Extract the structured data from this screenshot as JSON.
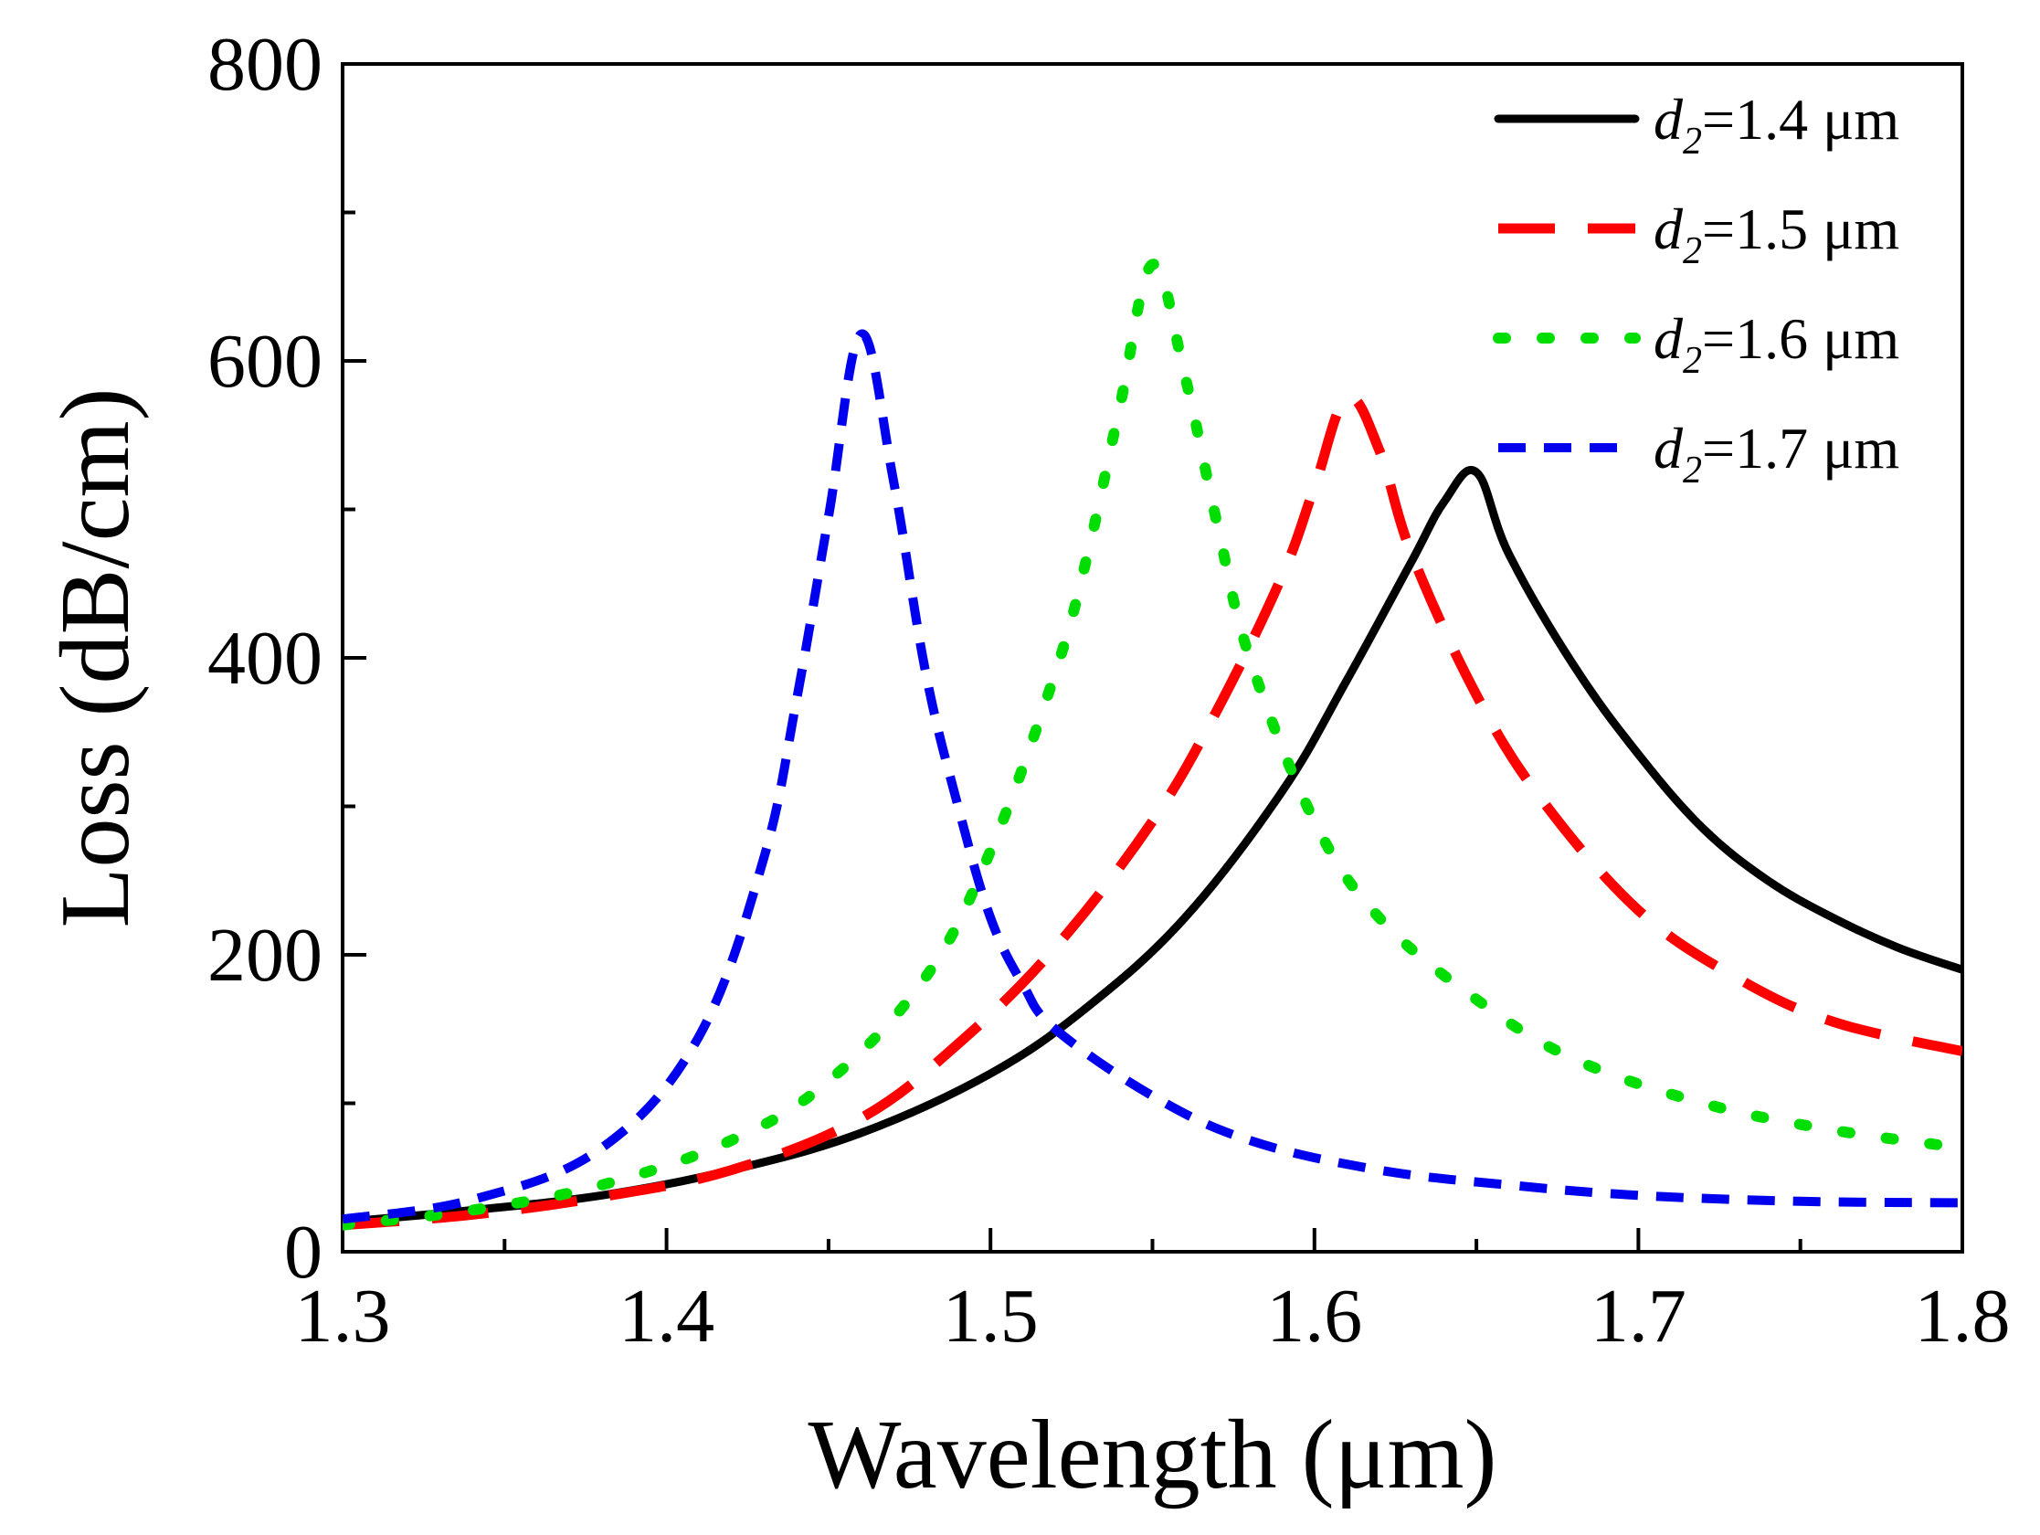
{
  "chart_data": {
    "type": "line",
    "title": "",
    "xlabel": "Wavelength (μm)",
    "ylabel": "Loss (dB/cm)",
    "xlim": [
      1.3,
      1.8
    ],
    "ylim": [
      0,
      800
    ],
    "x_ticks": [
      1.3,
      1.4,
      1.5,
      1.6,
      1.7,
      1.8
    ],
    "x_tick_labels": [
      "1.3",
      "1.4",
      "1.5",
      "1.6",
      "1.7",
      "1.8"
    ],
    "y_ticks": [
      0,
      200,
      400,
      600,
      800
    ],
    "y_tick_labels": [
      "0",
      "200",
      "400",
      "600",
      "800"
    ],
    "grid": false,
    "legend_position": "top-right",
    "series": [
      {
        "name": "d2=1.4 μm",
        "legend_var": "d",
        "legend_sub": "2",
        "legend_value": "=1.4 μm",
        "color": "#000000",
        "style": "solid",
        "x": [
          1.3,
          1.34,
          1.38,
          1.42,
          1.46,
          1.5,
          1.53,
          1.56,
          1.59,
          1.61,
          1.63,
          1.64,
          1.65,
          1.66,
          1.68,
          1.7,
          1.72,
          1.74,
          1.76,
          1.78,
          1.8
        ],
        "y": [
          20,
          28,
          38,
          55,
          80,
          120,
          165,
          225,
          310,
          385,
          465,
          505,
          525,
          470,
          395,
          335,
          285,
          250,
          225,
          205,
          190
        ]
      },
      {
        "name": "d2=1.5 μm",
        "legend_var": "d",
        "legend_sub": "2",
        "legend_value": "=1.5 μm",
        "color": "#ff0000",
        "style": "longdash",
        "x": [
          1.3,
          1.34,
          1.38,
          1.42,
          1.46,
          1.49,
          1.52,
          1.55,
          1.57,
          1.59,
          1.6,
          1.61,
          1.62,
          1.63,
          1.65,
          1.67,
          1.7,
          1.73,
          1.76,
          1.8
        ],
        "y": [
          18,
          25,
          37,
          55,
          90,
          140,
          205,
          290,
          365,
          455,
          515,
          575,
          540,
          470,
          375,
          305,
          230,
          185,
          155,
          135
        ]
      },
      {
        "name": "d2=1.6 μm",
        "legend_var": "d",
        "legend_sub": "2",
        "legend_value": "=1.6 μm",
        "color": "#00dd00",
        "style": "dotted",
        "x": [
          1.3,
          1.34,
          1.38,
          1.42,
          1.45,
          1.48,
          1.5,
          1.52,
          1.53,
          1.54,
          1.55,
          1.56,
          1.57,
          1.58,
          1.6,
          1.62,
          1.65,
          1.68,
          1.72,
          1.76,
          1.8
        ],
        "y": [
          18,
          28,
          45,
          75,
          115,
          185,
          270,
          390,
          470,
          570,
          665,
          590,
          490,
          400,
          290,
          225,
          170,
          130,
          100,
          82,
          70
        ]
      },
      {
        "name": "d2=1.7 μm",
        "legend_var": "d",
        "legend_sub": "2",
        "legend_value": "=1.7 μm",
        "color": "#0000ee",
        "style": "dashed",
        "x": [
          1.3,
          1.34,
          1.38,
          1.41,
          1.43,
          1.44,
          1.45,
          1.46,
          1.47,
          1.48,
          1.49,
          1.5,
          1.51,
          1.52,
          1.55,
          1.58,
          1.62,
          1.66,
          1.7,
          1.75,
          1.8
        ],
        "y": [
          22,
          35,
          70,
          145,
          265,
          370,
          495,
          618,
          520,
          390,
          300,
          225,
          180,
          150,
          105,
          75,
          55,
          45,
          38,
          34,
          33
        ]
      }
    ]
  }
}
